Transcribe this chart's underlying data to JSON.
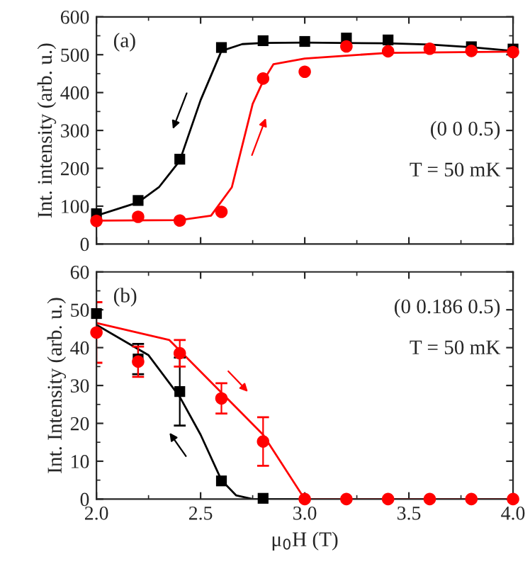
{
  "chart_data": [
    {
      "type": "scatter",
      "ylabel": "Int. intensity (arb. u.)",
      "xlim": [
        2.0,
        4.0
      ],
      "xticks": [
        2.0,
        2.5,
        3.0,
        3.5,
        4.0
      ],
      "ylim": [
        0,
        600
      ],
      "yticks": [
        0,
        100,
        200,
        300,
        400,
        500,
        600
      ],
      "tick_labels": "y",
      "grid": false,
      "legend": false,
      "annotations": [
        "(a)",
        "(0 0 0.5)",
        "T = 50 mK"
      ],
      "series": [
        {
          "type": "line",
          "color": "#000000",
          "x": [
            2.0,
            2.2,
            2.3,
            2.4,
            2.5,
            2.6,
            2.7,
            2.8,
            3.0,
            3.4,
            3.6,
            3.8,
            4.0
          ],
          "values": [
            75,
            110,
            150,
            220,
            380,
            510,
            528,
            531,
            532,
            530,
            527,
            520,
            510
          ]
        },
        {
          "type": "line",
          "color": "#ff0000",
          "x": [
            2.0,
            2.4,
            2.55,
            2.65,
            2.75,
            2.8,
            2.85,
            3.0,
            3.4,
            4.0
          ],
          "values": [
            62,
            63,
            75,
            150,
            370,
            430,
            475,
            490,
            505,
            508
          ]
        },
        {
          "marker": "square",
          "color": "#000000",
          "x": [
            2.0,
            2.2,
            2.4,
            2.6,
            2.8,
            3.0,
            3.2,
            3.4,
            3.8,
            4.0
          ],
          "values": [
            80,
            115,
            224,
            519,
            537,
            535,
            544,
            539,
            521,
            515
          ]
        },
        {
          "marker": "circle",
          "color": "#ff0000",
          "x": [
            2.0,
            2.2,
            2.4,
            2.6,
            2.8,
            3.0,
            3.2,
            3.4,
            3.6,
            3.8,
            4.0
          ],
          "values": [
            61,
            72,
            62,
            85,
            437,
            455,
            522,
            509,
            516,
            510,
            507
          ]
        }
      ]
    },
    {
      "type": "scatter",
      "ylabel": "Int. Intensity (arb. u.)",
      "xlabel": "μ$_{0}$H (T)",
      "xlim": [
        2.0,
        4.0
      ],
      "xticks": [
        {
          "value": 2,
          "label": "2.0"
        },
        2.5,
        {
          "value": 3,
          "label": "3.0"
        },
        3.5,
        {
          "value": 4,
          "label": "4.0"
        }
      ],
      "ylim": [
        0,
        60
      ],
      "yticks": [
        0,
        10,
        20,
        30,
        40,
        50,
        60
      ],
      "grid": false,
      "legend": false,
      "annotations": [
        "(b)",
        "(0 0.186 0.5)",
        "T = 50 mK"
      ],
      "series": [
        {
          "type": "line",
          "color": "#000000",
          "x": [
            2.0,
            2.25,
            2.4,
            2.5,
            2.6,
            2.67,
            2.75,
            4.0
          ],
          "values": [
            46,
            38,
            27,
            17,
            5,
            1,
            0,
            0
          ]
        },
        {
          "type": "line",
          "color": "#ff0000",
          "x": [
            2.0,
            2.35,
            2.8,
            3.0,
            4.0
          ],
          "values": [
            46.5,
            42,
            17,
            0,
            0
          ]
        },
        {
          "marker": "square",
          "color": "#000000",
          "x": [
            2.0,
            2.2,
            2.4,
            2.6,
            2.8
          ],
          "values": [
            49,
            37,
            28.4,
            4.8,
            0.2
          ],
          "errors": [
            null,
            4,
            9,
            null,
            null
          ]
        },
        {
          "marker": "circle",
          "color": "#ff0000",
          "x": [
            2.0,
            2.2,
            2.4,
            2.6,
            2.8,
            3.0,
            3.2,
            3.4,
            3.6,
            3.8,
            4.0
          ],
          "values": [
            44,
            36.3,
            38.5,
            26.6,
            15.2,
            0,
            0,
            0,
            0,
            0,
            0
          ],
          "errors": [
            8,
            4,
            3.5,
            4,
            6.4,
            null,
            null,
            null,
            null,
            null,
            null
          ]
        }
      ]
    }
  ]
}
